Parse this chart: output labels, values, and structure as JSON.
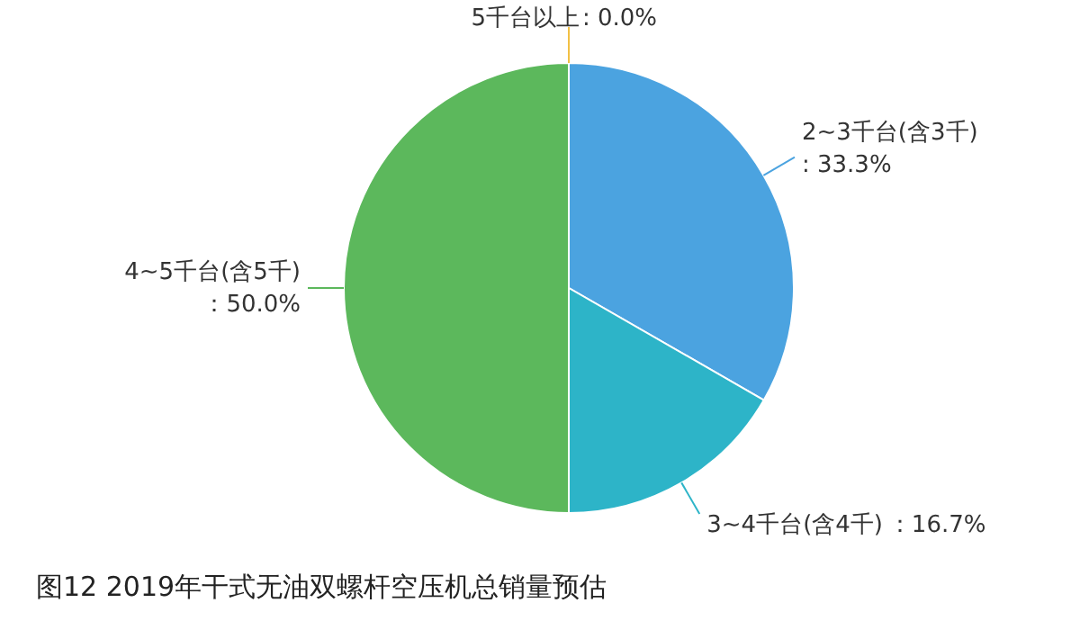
{
  "chart_data": {
    "type": "pie",
    "title": "图12   2019年干式无油双螺杆空压机总销量预估",
    "categories": [
      "2~3千台(含3千)",
      "3~4千台(含4千)",
      "4~5千台(含5千)",
      "5千台以上"
    ],
    "values": [
      33.3,
      16.7,
      50.0,
      0.0
    ],
    "value_labels": [
      ": 33.3%",
      "：16.7%",
      "：50.0%",
      ": 0.0%"
    ],
    "colors": [
      "#4ba3e0",
      "#2db4c8",
      "#5cb85c",
      "#f2c045"
    ]
  }
}
